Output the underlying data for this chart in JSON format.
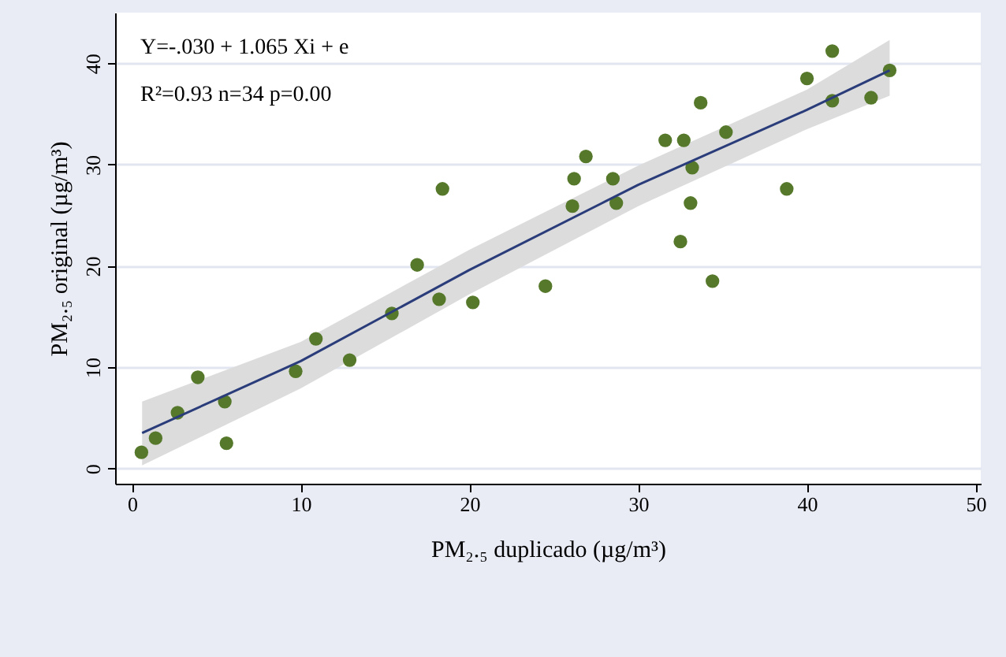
{
  "chart_data": {
    "type": "scatter",
    "xlabel": "PM₂.₅ duplicado (µg/m³)",
    "ylabel": "PM₂.₅ original (µg/m³)",
    "annotations": [
      "Y=-.030 + 1.065 Xi + e",
      "R²=0.93 n=34 p=0.00"
    ],
    "xlim": [
      -1,
      50.3
    ],
    "ylim": [
      -1.5,
      45
    ],
    "xticks": [
      0,
      10,
      20,
      30,
      40,
      50
    ],
    "yticks": [
      0,
      10,
      20,
      30,
      40
    ],
    "grid": "y",
    "series": [
      {
        "marker": "circle",
        "color": "#55782a",
        "x": [
          0.56,
          1.4,
          2.7,
          3.9,
          5.5,
          5.6,
          9.7,
          10.9,
          12.9,
          15.4,
          16.9,
          18.2,
          18.4,
          20.2,
          24.5,
          26.1,
          26.2,
          26.9,
          28.5,
          28.7,
          31.6,
          32.5,
          32.7,
          33.1,
          33.2,
          33.7,
          34.4,
          35.2,
          38.8,
          40.0,
          41.5,
          41.5,
          43.8,
          44.9
        ],
        "values": [
          1.6,
          3.0,
          5.5,
          9.0,
          6.6,
          2.5,
          9.6,
          12.8,
          10.7,
          15.3,
          20.1,
          16.7,
          27.6,
          16.4,
          18.0,
          25.9,
          28.6,
          30.8,
          28.6,
          26.2,
          32.4,
          22.4,
          32.4,
          26.2,
          29.7,
          36.1,
          18.5,
          33.2,
          27.6,
          38.5,
          41.2,
          36.3,
          36.6,
          39.3
        ]
      },
      {
        "type": "line",
        "color": "#2a3d7a",
        "x": [
          0.6,
          10,
          20,
          30,
          40,
          44.9
        ],
        "values": [
          3.5,
          10.6,
          19.6,
          28.0,
          35.4,
          39.3
        ],
        "lower": [
          0.3,
          7.9,
          17.2,
          25.9,
          33.5,
          36.8
        ],
        "upper": [
          6.6,
          12.5,
          21.6,
          29.9,
          37.4,
          42.3
        ]
      }
    ]
  }
}
